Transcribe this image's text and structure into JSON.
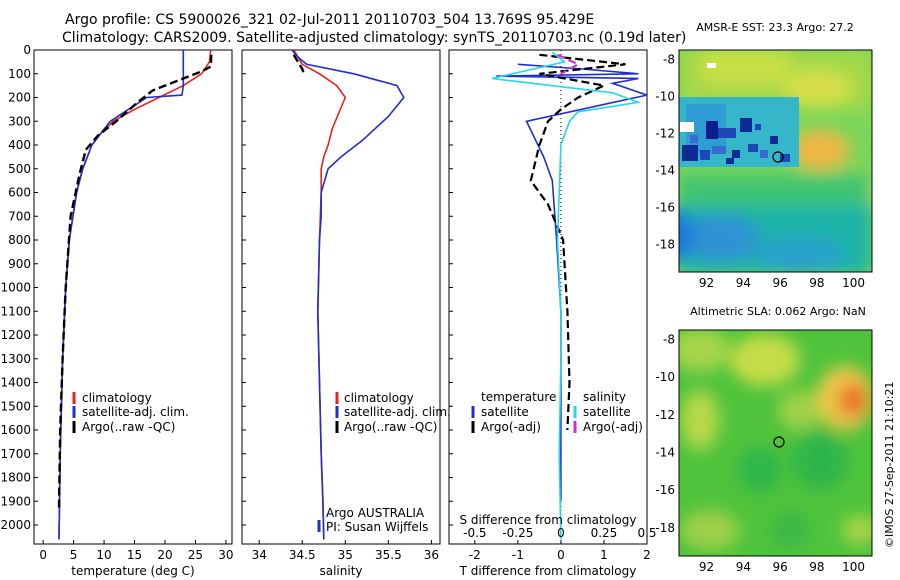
{
  "header": {
    "title_line1": "Argo profile: CS 5900026_321 02-Jul-2011 20110703_504 13.769S 95.429E",
    "title_line2": "Climatology: CARS2009. Satellite-adjusted climatology: synTS_20110703.nc (0.19d later)"
  },
  "colors": {
    "climatology": "#e8231c",
    "satellite": "#1f2fd0",
    "argo": "#000000",
    "salinity_sat": "#22d6f0",
    "salinity_argo_adj": "#d22fd2"
  },
  "chart_data": [
    {
      "id": "temperature",
      "type": "line",
      "xlabel": "temperature (deg C)",
      "ylabel": "",
      "xlim": [
        -1.5,
        31
      ],
      "ylim": [
        2080,
        0
      ],
      "xticks": [
        0,
        5,
        10,
        15,
        20,
        25,
        30
      ],
      "yticks": [
        0,
        100,
        200,
        300,
        400,
        500,
        600,
        700,
        800,
        900,
        1000,
        1100,
        1200,
        1300,
        1400,
        1500,
        1600,
        1700,
        1800,
        1900,
        2000
      ],
      "legend": [
        "climatology",
        "satellite-adj. clim.",
        "Argo(..raw -QC)"
      ],
      "series": [
        {
          "name": "climatology",
          "x": [
            27.5,
            27.3,
            26.0,
            23.0,
            19.0,
            15.0,
            11.5,
            9.5,
            8.0,
            6.5,
            5.5,
            4.3,
            3.7,
            3.2,
            2.8,
            2.6
          ],
          "y": [
            0,
            50,
            100,
            150,
            200,
            250,
            300,
            350,
            400,
            500,
            600,
            800,
            1000,
            1300,
            1700,
            2060
          ]
        },
        {
          "name": "satellite-adj. clim.",
          "x": [
            23.0,
            23.0,
            23.0,
            22.8,
            17.0,
            14.0,
            11.0,
            9.5,
            8.0,
            6.5,
            5.5,
            4.3,
            3.7,
            3.2,
            2.8,
            2.6
          ],
          "y": [
            0,
            100,
            150,
            190,
            200,
            250,
            300,
            350,
            400,
            500,
            600,
            800,
            1000,
            1300,
            1700,
            2060
          ]
        },
        {
          "name": "Argo(..raw -QC)",
          "x": [
            27.6,
            27.5,
            26.0,
            23.0,
            18.0,
            15.5,
            12.0,
            9.0,
            7.0,
            6.0,
            4.5,
            3.7,
            3.2,
            2.8,
            2.6
          ],
          "y": [
            20,
            70,
            90,
            120,
            170,
            220,
            300,
            360,
            420,
            520,
            700,
            1000,
            1300,
            1600,
            1930
          ]
        }
      ]
    },
    {
      "id": "salinity",
      "type": "line",
      "xlabel": "salinity",
      "ylabel": "",
      "xlim": [
        33.8,
        36.1
      ],
      "ylim": [
        2080,
        0
      ],
      "xticks": [
        34,
        34.5,
        35,
        35.5,
        36
      ],
      "legend": [
        "climatology",
        "satellite-adj. clim.",
        "Argo(..raw -QC)"
      ],
      "series": [
        {
          "name": "climatology",
          "x": [
            34.4,
            34.45,
            34.5,
            34.7,
            34.9,
            35.0,
            34.93,
            34.85,
            34.8,
            34.75,
            34.72,
            34.72,
            34.7,
            34.68,
            34.7,
            34.72,
            34.74,
            34.75
          ],
          "y": [
            0,
            30,
            60,
            100,
            150,
            200,
            260,
            330,
            400,
            450,
            500,
            600,
            800,
            1100,
            1400,
            1700,
            1900,
            2060
          ]
        },
        {
          "name": "satellite-adj. clim.",
          "x": [
            34.38,
            34.45,
            34.55,
            35.1,
            35.6,
            35.68,
            35.5,
            35.2,
            34.95,
            34.8,
            34.72,
            34.72,
            34.7,
            34.68,
            34.7,
            34.72,
            34.74,
            34.75
          ],
          "y": [
            0,
            30,
            60,
            100,
            150,
            200,
            280,
            380,
            450,
            500,
            600,
            700,
            800,
            1100,
            1400,
            1700,
            1900,
            2060
          ]
        },
        {
          "name": "Argo(..raw -QC)",
          "x": [
            34.4,
            34.45,
            34.5,
            34.52
          ],
          "y": [
            20,
            50,
            80,
            100
          ]
        }
      ],
      "annotations": [
        "Argo AUSTRALIA",
        "PI: Susan Wijffels"
      ]
    },
    {
      "id": "difference",
      "type": "line",
      "xlabel": "T difference from climatology",
      "x2label": "S difference from climatology",
      "xlim": [
        -2.6,
        2.0
      ],
      "x2lim": [
        -0.65,
        0.5
      ],
      "ylim": [
        2080,
        0
      ],
      "xticks": [
        -2,
        -1,
        0,
        1,
        2
      ],
      "x2ticks": [
        -0.5,
        -0.25,
        0,
        0.25,
        0.5
      ],
      "legend_temperature": [
        "satellite",
        "Argo(-adj)"
      ],
      "legend_salinity": [
        "satellite",
        "Argo(-adj)"
      ],
      "legend_title_temperature": "temperature",
      "legend_title_salinity": "salinity",
      "series": [
        {
          "name": "temperature satellite",
          "x": [
            -1.0,
            0.5,
            1.8,
            -1.5,
            1.8,
            1.2,
            2.0,
            -0.8,
            -0.4,
            -0.2,
            -0.1,
            0.0,
            0.0,
            0.0
          ],
          "y": [
            60,
            80,
            100,
            110,
            120,
            140,
            190,
            300,
            450,
            550,
            800,
            1100,
            1500,
            1900
          ]
        },
        {
          "name": "temperature Argo(-adj)",
          "x": [
            -0.5,
            1.5,
            -0.5,
            1.0,
            0.4,
            0.0,
            -0.3,
            -0.5,
            -0.7,
            -0.3,
            0.05,
            0.15,
            0.2,
            0.15
          ],
          "y": [
            20,
            60,
            100,
            150,
            200,
            250,
            300,
            400,
            550,
            650,
            800,
            1100,
            1400,
            1600
          ]
        },
        {
          "name": "salinity satellite",
          "x": [
            -0.05,
            0.02,
            -0.4,
            0.3,
            0.45,
            0.1,
            0.05,
            0.0,
            -0.02,
            0.0,
            0.0,
            -0.01,
            0.0
          ],
          "y": [
            10,
            50,
            120,
            180,
            220,
            260,
            300,
            400,
            800,
            1100,
            1300,
            1700,
            2060
          ]
        },
        {
          "name": "salinity Argo(-adj)",
          "x": [
            -0.02,
            0.1,
            0.0
          ],
          "y": [
            20,
            60,
            100
          ]
        }
      ]
    },
    {
      "id": "sst_map",
      "type": "heatmap",
      "title": "AMSR-E SST: 23.3 Argo: 27.2",
      "xticks": [
        92,
        94,
        96,
        98,
        100
      ],
      "yticks": [
        -8,
        -10,
        -12,
        -14,
        -16,
        -18
      ],
      "xlim": [
        90.5,
        101
      ],
      "ylim": [
        -19.5,
        -7.5
      ],
      "marker": {
        "lon": 95.43,
        "lat": -13.77
      }
    },
    {
      "id": "sla_map",
      "type": "heatmap",
      "title": "Altimetric SLA: 0.062 Argo: NaN",
      "xticks": [
        92,
        94,
        96,
        98,
        100
      ],
      "yticks": [
        -8,
        -10,
        -12,
        -14,
        -16,
        -18
      ],
      "xlim": [
        90.5,
        101
      ],
      "ylim": [
        -19.5,
        -7.5
      ],
      "marker": {
        "lon": 95.43,
        "lat": -13.77
      }
    }
  ],
  "footer": {
    "credit": "©IMOS 27-Sep-2011 21:10:21"
  }
}
